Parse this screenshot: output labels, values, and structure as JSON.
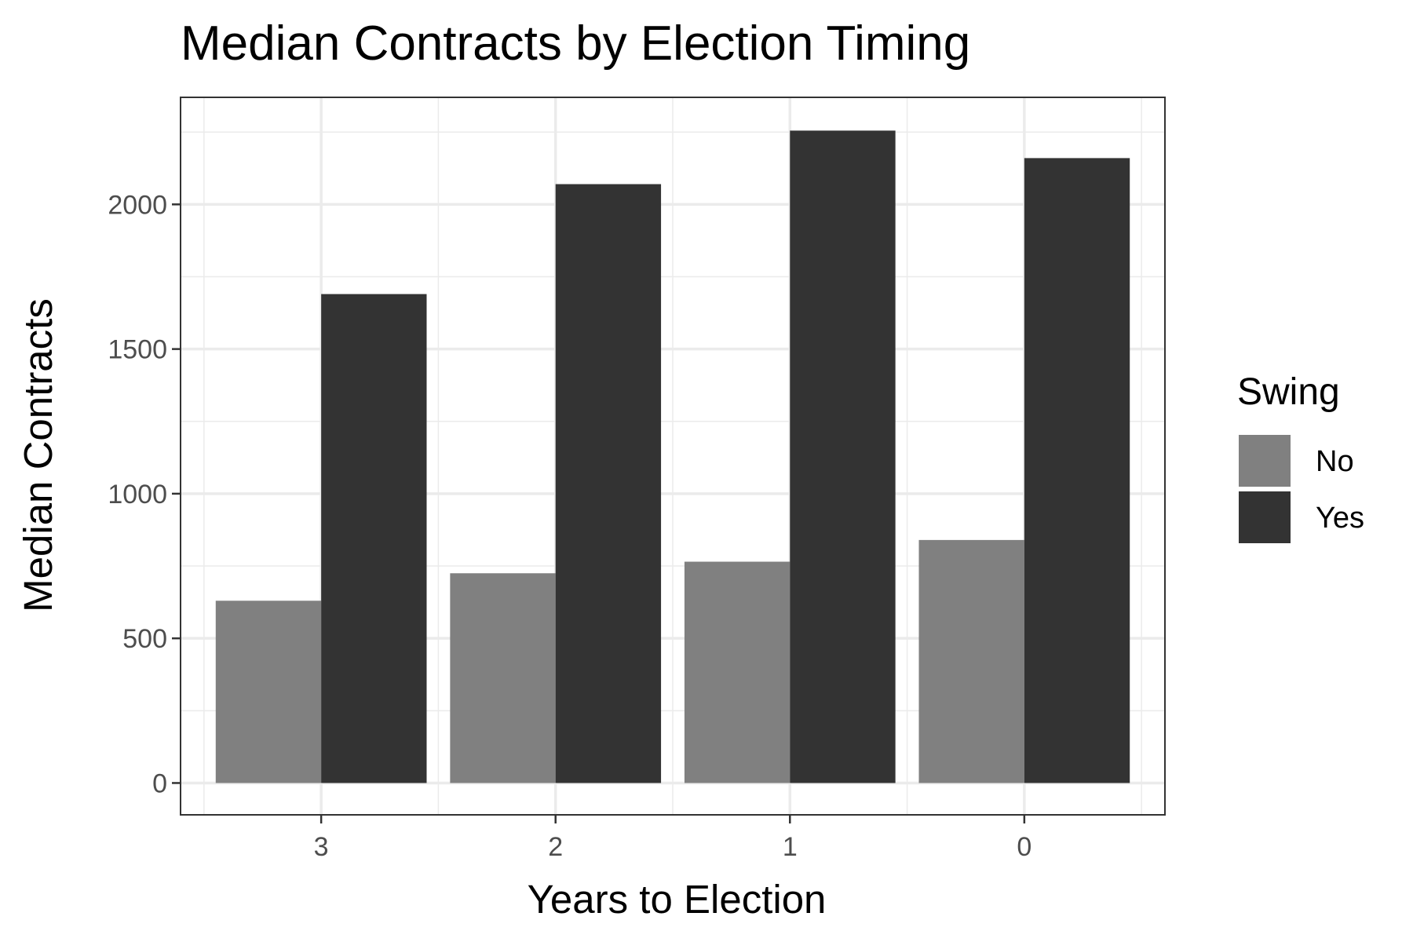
{
  "chart_data": {
    "type": "bar",
    "title": "Median Contracts by Election Timing",
    "xlabel": "Years to Election",
    "ylabel": "Median Contracts",
    "categories": [
      "3",
      "2",
      "1",
      "0"
    ],
    "series": [
      {
        "name": "No",
        "color": "#808080",
        "values": [
          630,
          725,
          765,
          840
        ]
      },
      {
        "name": "Yes",
        "color": "#333333",
        "values": [
          1690,
          2070,
          2255,
          2160
        ]
      }
    ],
    "ylim": [
      -110,
      2370
    ],
    "yticks": [
      "0",
      "500",
      "1000",
      "1500",
      "2000"
    ],
    "ytick_values": [
      0,
      500,
      1000,
      1500,
      2000
    ],
    "grid": true,
    "legend": {
      "title": "Swing",
      "placement": "right"
    }
  }
}
